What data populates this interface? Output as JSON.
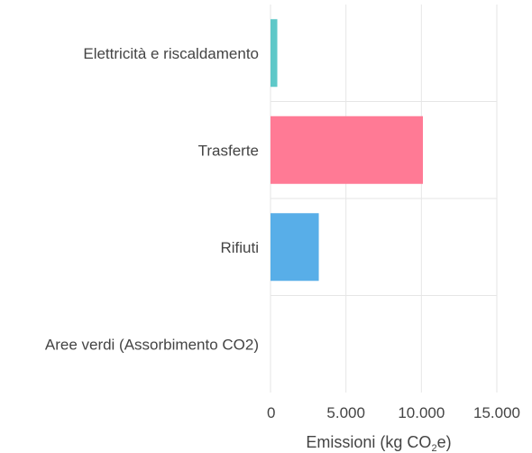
{
  "chart_data": {
    "type": "bar",
    "orientation": "horizontal",
    "categories": [
      "Elettricità e riscaldamento",
      "Trasferte",
      "Rifiuti",
      "Aree verdi (Assorbimento CO2)"
    ],
    "values": [
      450,
      10100,
      3200,
      0
    ],
    "colors": [
      "#5ec8c8",
      "#ff7a95",
      "#58aee8",
      "#b0b0b0"
    ],
    "xlim": [
      0,
      15000
    ],
    "xticks": [
      0,
      5000,
      10000,
      15000
    ],
    "xtick_labels": [
      "0",
      "5.000",
      "10.000",
      "15.000"
    ],
    "xlabel_main": "Emissioni (kg CO",
    "xlabel_sub": "2",
    "xlabel_end": "e)",
    "grid": true
  }
}
